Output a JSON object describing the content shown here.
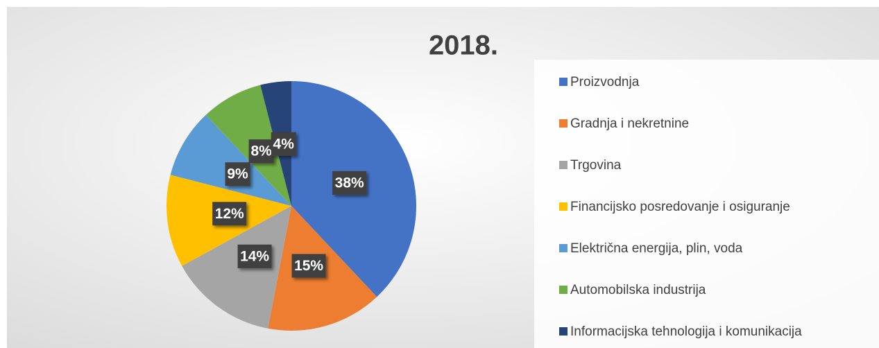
{
  "chart_data": {
    "type": "pie",
    "title": "2018.",
    "categories": [
      "Proizvodnja",
      "Gradnja i nekretnine",
      "Trgovina",
      "Financijsko posredovanje i osiguranje",
      "Električna energija, plin, voda",
      "Automobilska industrija",
      "Informacijska tehnologija i komunikacija"
    ],
    "values": [
      38,
      15,
      14,
      12,
      9,
      8,
      4
    ],
    "value_labels": [
      "38%",
      "15%",
      "14%",
      "12%",
      "9%",
      "8%",
      "4%"
    ],
    "colors": [
      "#4472c4",
      "#ed7d31",
      "#a5a5a5",
      "#ffc000",
      "#5b9bd5",
      "#70ad47",
      "#264478"
    ],
    "legend": "right"
  }
}
